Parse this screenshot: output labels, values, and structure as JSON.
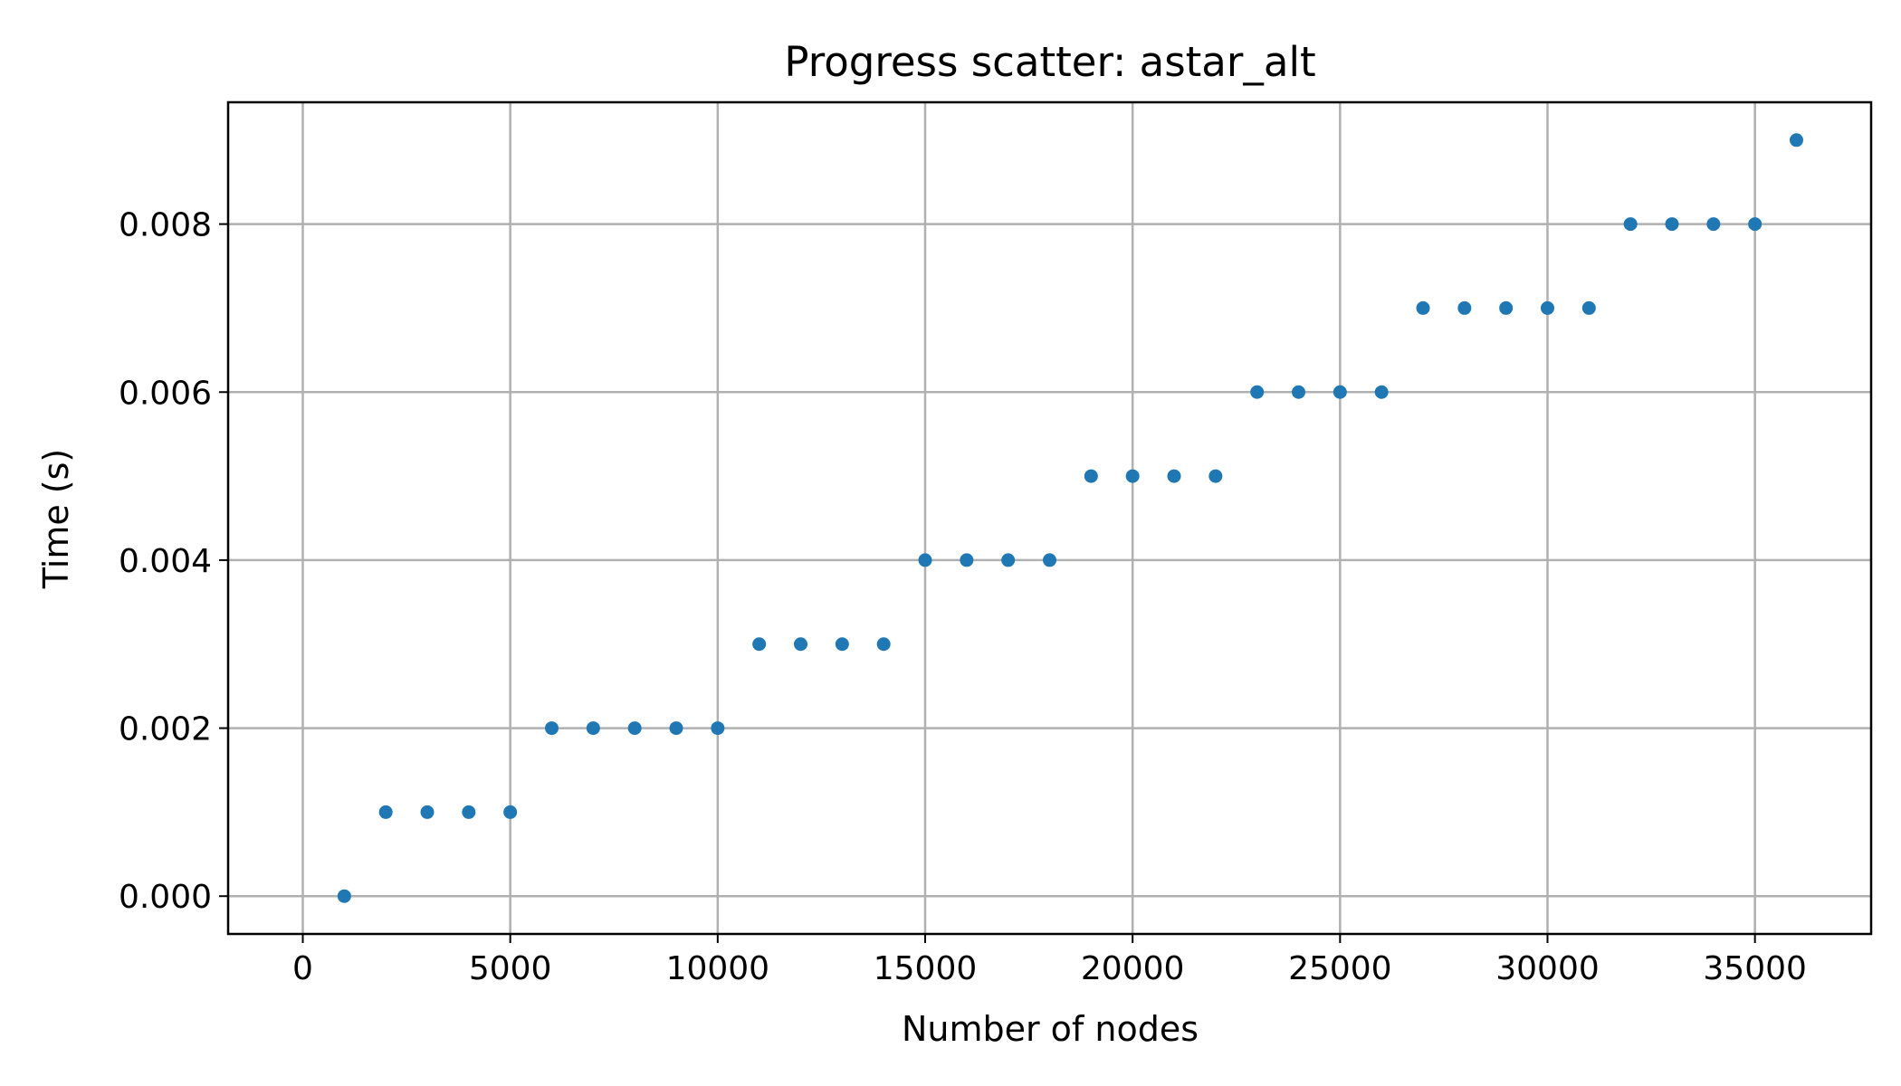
{
  "chart_data": {
    "type": "scatter",
    "title": "Progress scatter: astar_alt",
    "xlabel": "Number of nodes",
    "ylabel": "Time (s)",
    "xlim": [
      -1800,
      37800
    ],
    "ylim": [
      -0.00045,
      0.00945
    ],
    "xticks": [
      0,
      5000,
      10000,
      15000,
      20000,
      25000,
      30000,
      35000
    ],
    "xtick_labels": [
      "0",
      "5000",
      "10000",
      "15000",
      "20000",
      "25000",
      "30000",
      "35000"
    ],
    "yticks": [
      0.0,
      0.002,
      0.004,
      0.006,
      0.008
    ],
    "ytick_labels": [
      "0.000",
      "0.002",
      "0.004",
      "0.006",
      "0.008"
    ],
    "grid": true,
    "color": "#1f77b4",
    "x": [
      1000,
      2000,
      3000,
      4000,
      5000,
      6000,
      7000,
      8000,
      9000,
      10000,
      11000,
      12000,
      13000,
      14000,
      15000,
      16000,
      17000,
      18000,
      19000,
      20000,
      21000,
      22000,
      23000,
      24000,
      25000,
      26000,
      27000,
      28000,
      29000,
      30000,
      31000,
      32000,
      33000,
      34000,
      35000,
      36000
    ],
    "y": [
      0.0,
      0.001,
      0.001,
      0.001,
      0.001,
      0.002,
      0.002,
      0.002,
      0.002,
      0.002,
      0.003,
      0.003,
      0.003,
      0.003,
      0.004,
      0.004,
      0.004,
      0.004,
      0.005,
      0.005,
      0.005,
      0.005,
      0.006,
      0.006,
      0.006,
      0.006,
      0.007,
      0.007,
      0.007,
      0.007,
      0.007,
      0.008,
      0.008,
      0.008,
      0.008,
      0.009
    ]
  }
}
